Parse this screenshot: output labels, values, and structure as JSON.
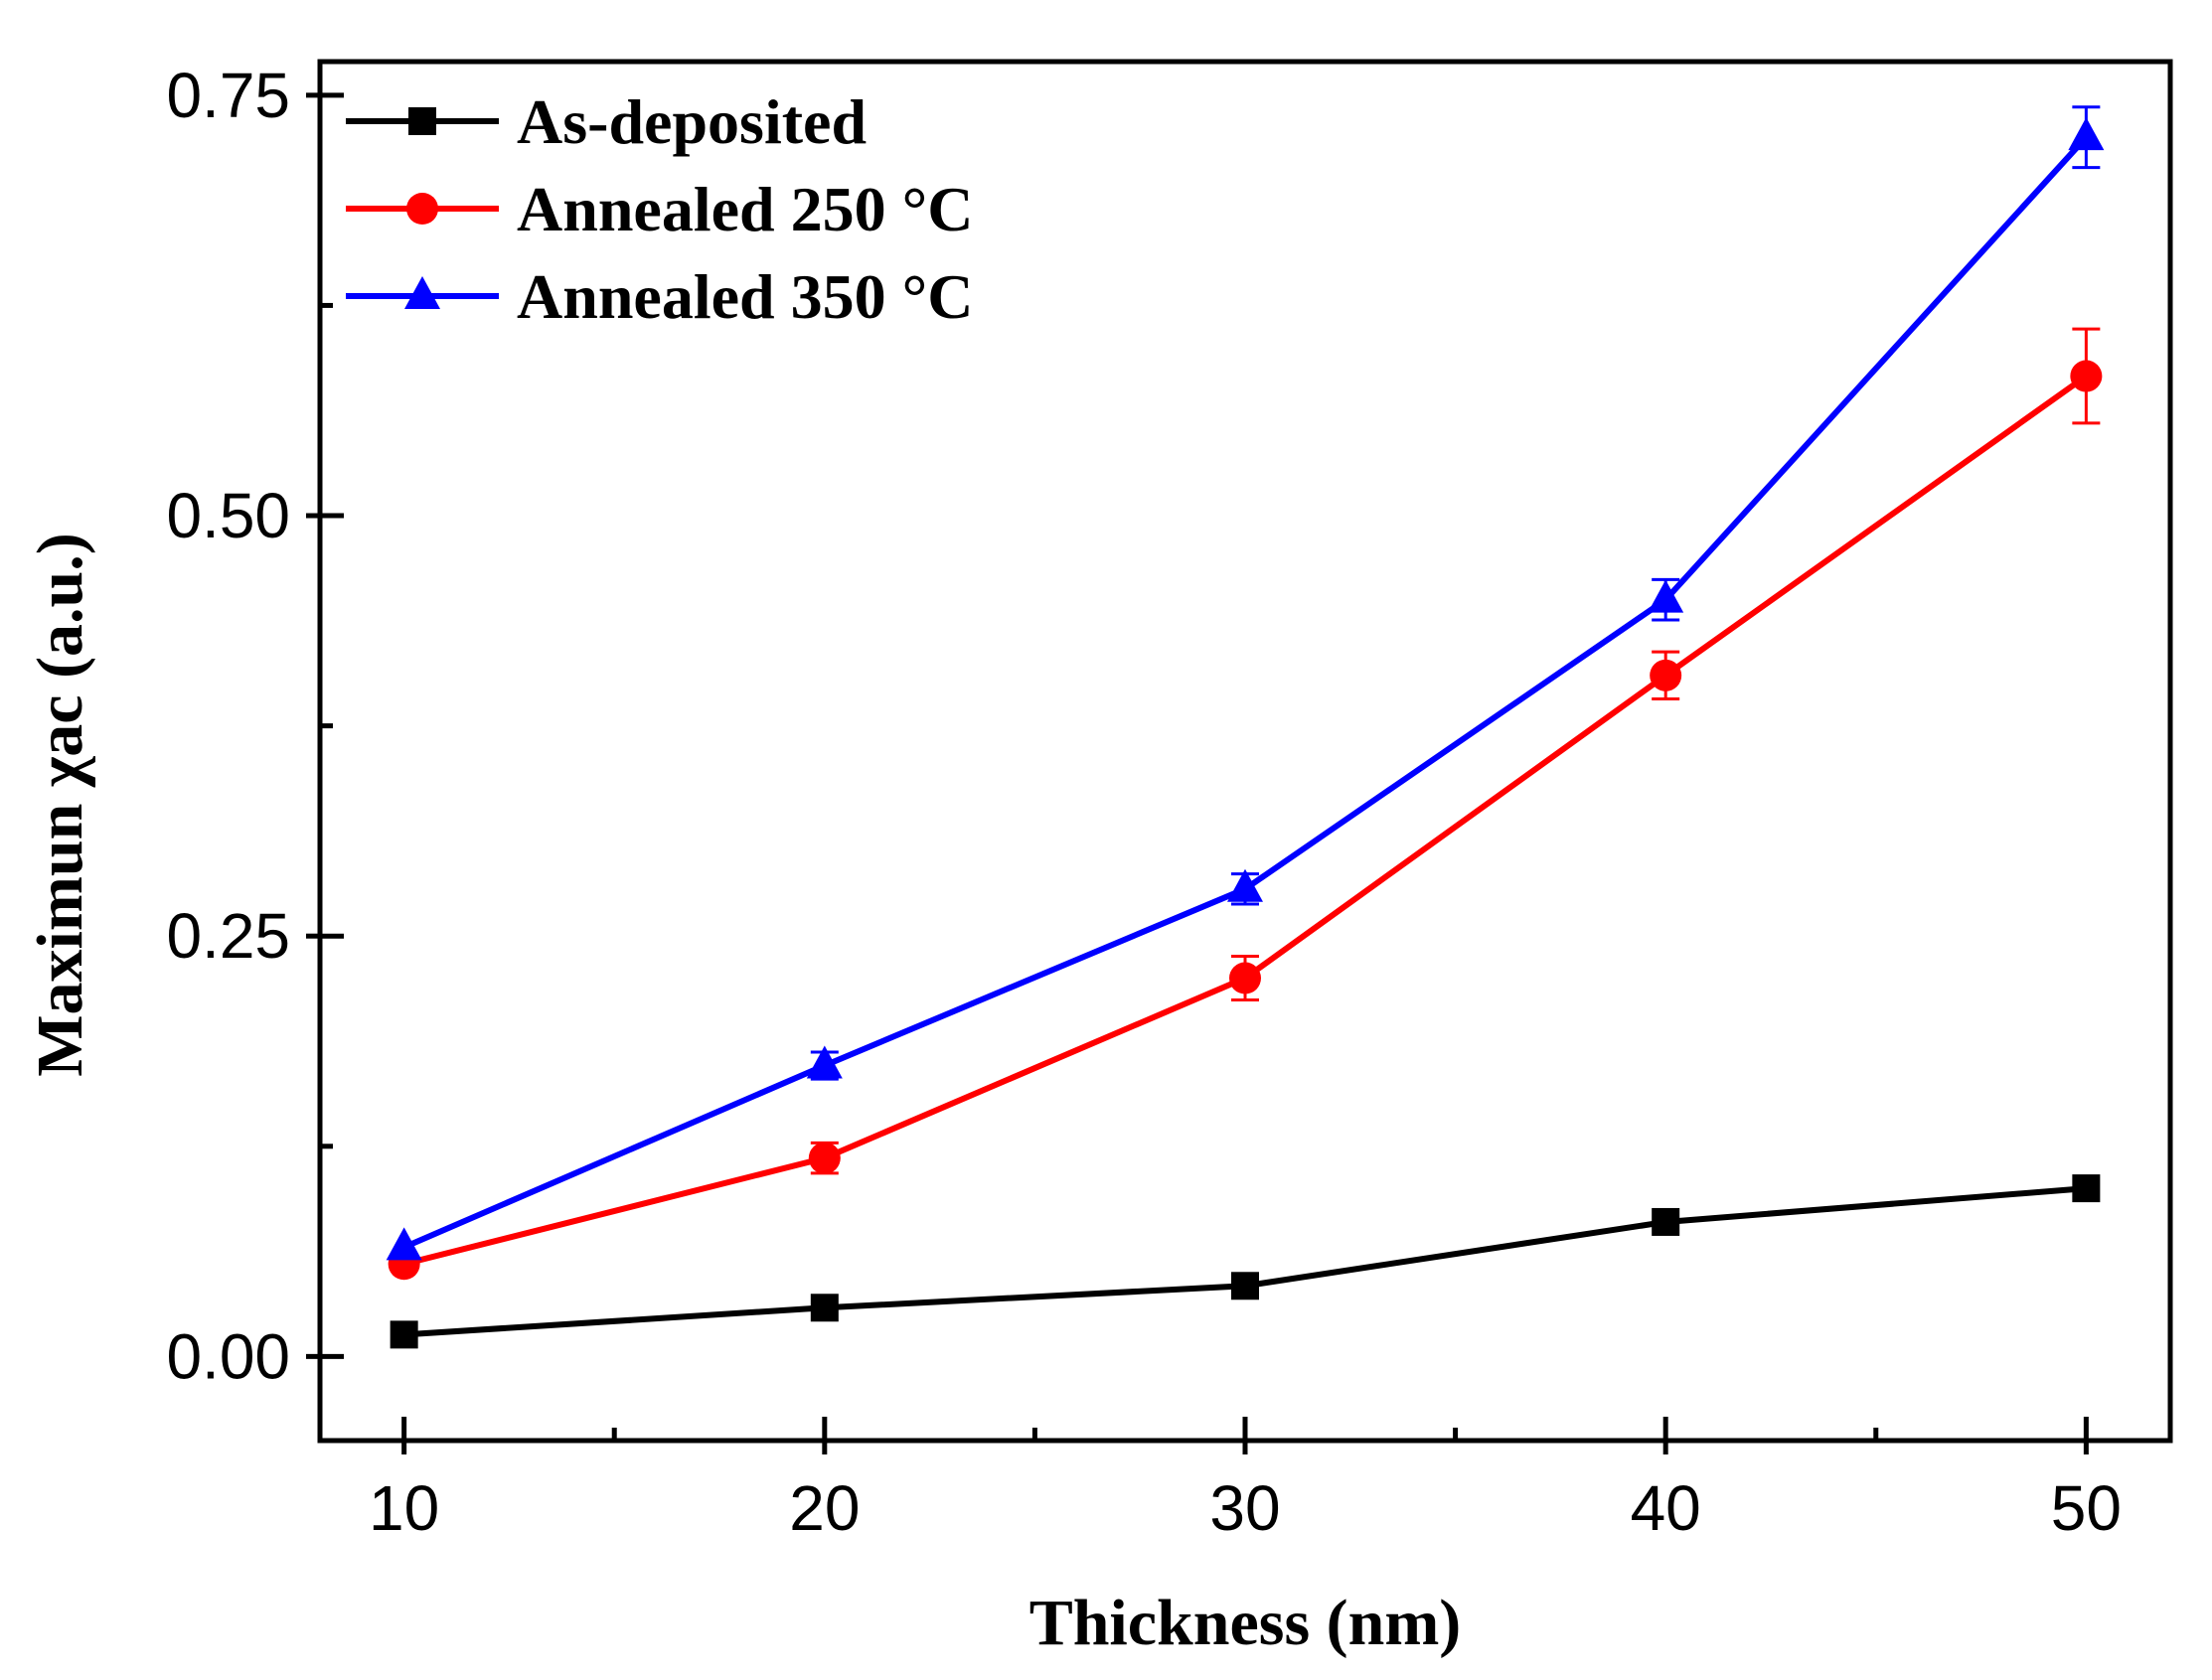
{
  "chart_data": {
    "type": "line",
    "title": "",
    "xlabel": "Thickness (nm)",
    "ylabel": "Maximun χac (a.u.)",
    "xlim": [
      8,
      52
    ],
    "ylim": [
      -0.05,
      0.77
    ],
    "x": [
      10,
      20,
      30,
      40,
      50
    ],
    "xticks": [
      10,
      20,
      30,
      40,
      50
    ],
    "xtick_labels": [
      "10",
      "20",
      "30",
      "40",
      "50"
    ],
    "xminor": [
      15,
      25,
      35,
      45
    ],
    "yticks": [
      0.0,
      0.25,
      0.5,
      0.75
    ],
    "ytick_labels": [
      "0.00",
      "0.25",
      "0.50",
      "0.75"
    ],
    "yminor": [
      0.125,
      0.375,
      0.625
    ],
    "grid": false,
    "legend_position": "top-left",
    "series": [
      {
        "name": "As-deposited",
        "marker": "square",
        "color": "#000000",
        "values": [
          0.013,
          0.029,
          0.042,
          0.08,
          0.1
        ],
        "errors": [
          0,
          0,
          0,
          0,
          0
        ]
      },
      {
        "name": "Annealed 250 °C",
        "marker": "circle",
        "color": "#ff0000",
        "values": [
          0.055,
          0.118,
          0.225,
          0.405,
          0.583
        ],
        "errors": [
          0,
          0.009,
          0.013,
          0.014,
          0.028
        ]
      },
      {
        "name": "Annealed 350 °C",
        "marker": "triangle",
        "color": "#0000ff",
        "values": [
          0.065,
          0.173,
          0.278,
          0.45,
          0.725
        ],
        "errors": [
          0,
          0.008,
          0.009,
          0.012,
          0.018
        ]
      }
    ]
  }
}
